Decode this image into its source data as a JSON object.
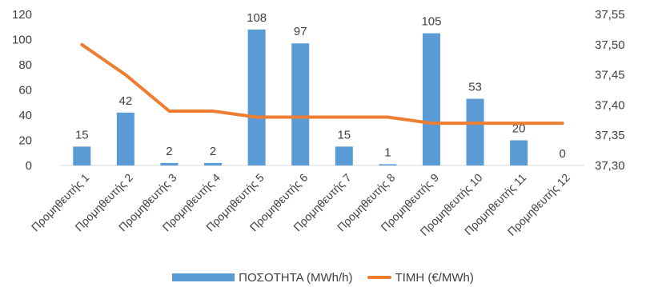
{
  "chart_data": {
    "type": "bar",
    "categories": [
      "Προμηθευτής 1",
      "Προμηθευτής 2",
      "Προμηθευτής 3",
      "Προμηθευτής 4",
      "Προμηθευτής 5",
      "Προμηθευτής 6",
      "Προμηθευτής 7",
      "Προμηθευτής 8",
      "Προμηθευτής 9",
      "Προμηθευτής 10",
      "Προμηθευτής 11",
      "Προμηθευτής 12"
    ],
    "series": [
      {
        "name": "ΠΟΣΟΤΗΤΑ (MWh/h)",
        "type": "bar",
        "axis": "left",
        "color": "#5b9bd5",
        "values": [
          15,
          42,
          2,
          2,
          108,
          97,
          15,
          1,
          105,
          53,
          20,
          0
        ],
        "labels": [
          "15",
          "42",
          "2",
          "2",
          "108",
          "97",
          "15",
          "1",
          "105",
          "53",
          "20",
          "0"
        ]
      },
      {
        "name": "ΤΙΜΗ (€/MWh)",
        "type": "line",
        "axis": "right",
        "color": "#ed7d31",
        "values": [
          37.5,
          37.45,
          37.39,
          37.39,
          37.38,
          37.38,
          37.38,
          37.38,
          37.37,
          37.37,
          37.37,
          37.37
        ]
      }
    ],
    "y_left": {
      "ylim": [
        0,
        120
      ],
      "ticks": [
        0,
        20,
        40,
        60,
        80,
        100,
        120
      ],
      "tick_labels": [
        "0",
        "20",
        "40",
        "60",
        "80",
        "100",
        "120"
      ]
    },
    "y_right": {
      "ylim": [
        37.3,
        37.55
      ],
      "ticks": [
        37.3,
        37.35,
        37.4,
        37.45,
        37.5,
        37.55
      ],
      "tick_labels": [
        "37,30",
        "37,35",
        "37,40",
        "37,45",
        "37,50",
        "37,55"
      ]
    },
    "grid": false,
    "legend_position": "bottom",
    "legend": [
      "ΠΟΣΟΤΗΤΑ (MWh/h)",
      "ΤΙΜΗ (€/MWh)"
    ]
  }
}
